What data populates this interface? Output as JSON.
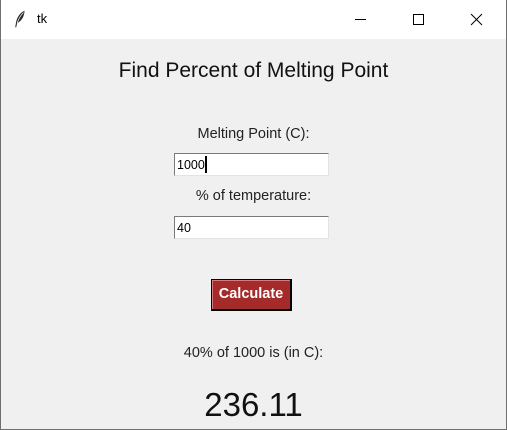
{
  "window": {
    "title": "tk",
    "app_icon": "feather-icon",
    "controls": {
      "minimize": "minimize-icon",
      "maximize": "maximize-icon",
      "close": "close-icon"
    }
  },
  "form": {
    "heading": "Find Percent of Melting Point",
    "melting_point_label": "Melting Point (C):",
    "melting_point_value": "1000",
    "percent_label": "% of temperature:",
    "percent_value": "40",
    "calculate_label": "Calculate",
    "calculate_color": "#a52a2a"
  },
  "result": {
    "label": "40% of 1000 is (in C):",
    "value": "236.11"
  }
}
